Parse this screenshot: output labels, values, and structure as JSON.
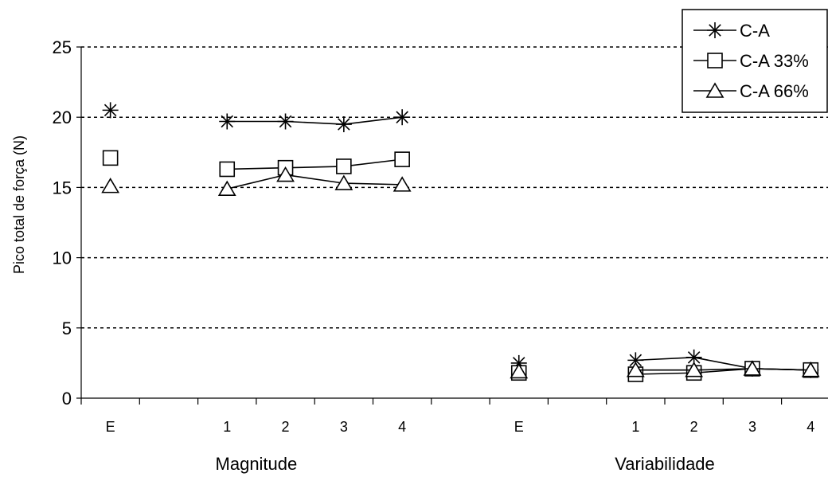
{
  "chart_data": {
    "type": "line",
    "ylabel": "Pico total de força (N)",
    "ylim": [
      0,
      25
    ],
    "yticks": [
      "0",
      "5",
      "10",
      "15",
      "20",
      "25"
    ],
    "grid": "horizontal dotted",
    "legend_position": "top-right",
    "groups": [
      {
        "label": "Magnitude",
        "categories": [
          "E",
          "1",
          "2",
          "3",
          "4"
        ]
      },
      {
        "label": "Variabilidade",
        "categories": [
          "E",
          "1",
          "2",
          "3",
          "4"
        ]
      }
    ],
    "series": [
      {
        "name": "C-A",
        "marker": "asterisk",
        "groups": [
          {
            "E": 20.5,
            "values": [
              19.7,
              19.7,
              19.5,
              20.0
            ]
          },
          {
            "E": 2.5,
            "values": [
              2.7,
              2.9,
              2.1,
              2.0
            ]
          }
        ]
      },
      {
        "name": "C-A 33%",
        "marker": "square",
        "groups": [
          {
            "E": 17.1,
            "values": [
              16.3,
              16.4,
              16.5,
              17.0
            ]
          },
          {
            "E": 1.8,
            "values": [
              1.7,
              1.8,
              2.1,
              2.0
            ]
          }
        ]
      },
      {
        "name": "C-A 66%",
        "marker": "triangle",
        "groups": [
          {
            "E": 15.1,
            "values": [
              14.9,
              15.9,
              15.3,
              15.2
            ]
          },
          {
            "E": 1.9,
            "values": [
              2.0,
              2.0,
              2.1,
              2.0
            ]
          }
        ]
      }
    ]
  }
}
